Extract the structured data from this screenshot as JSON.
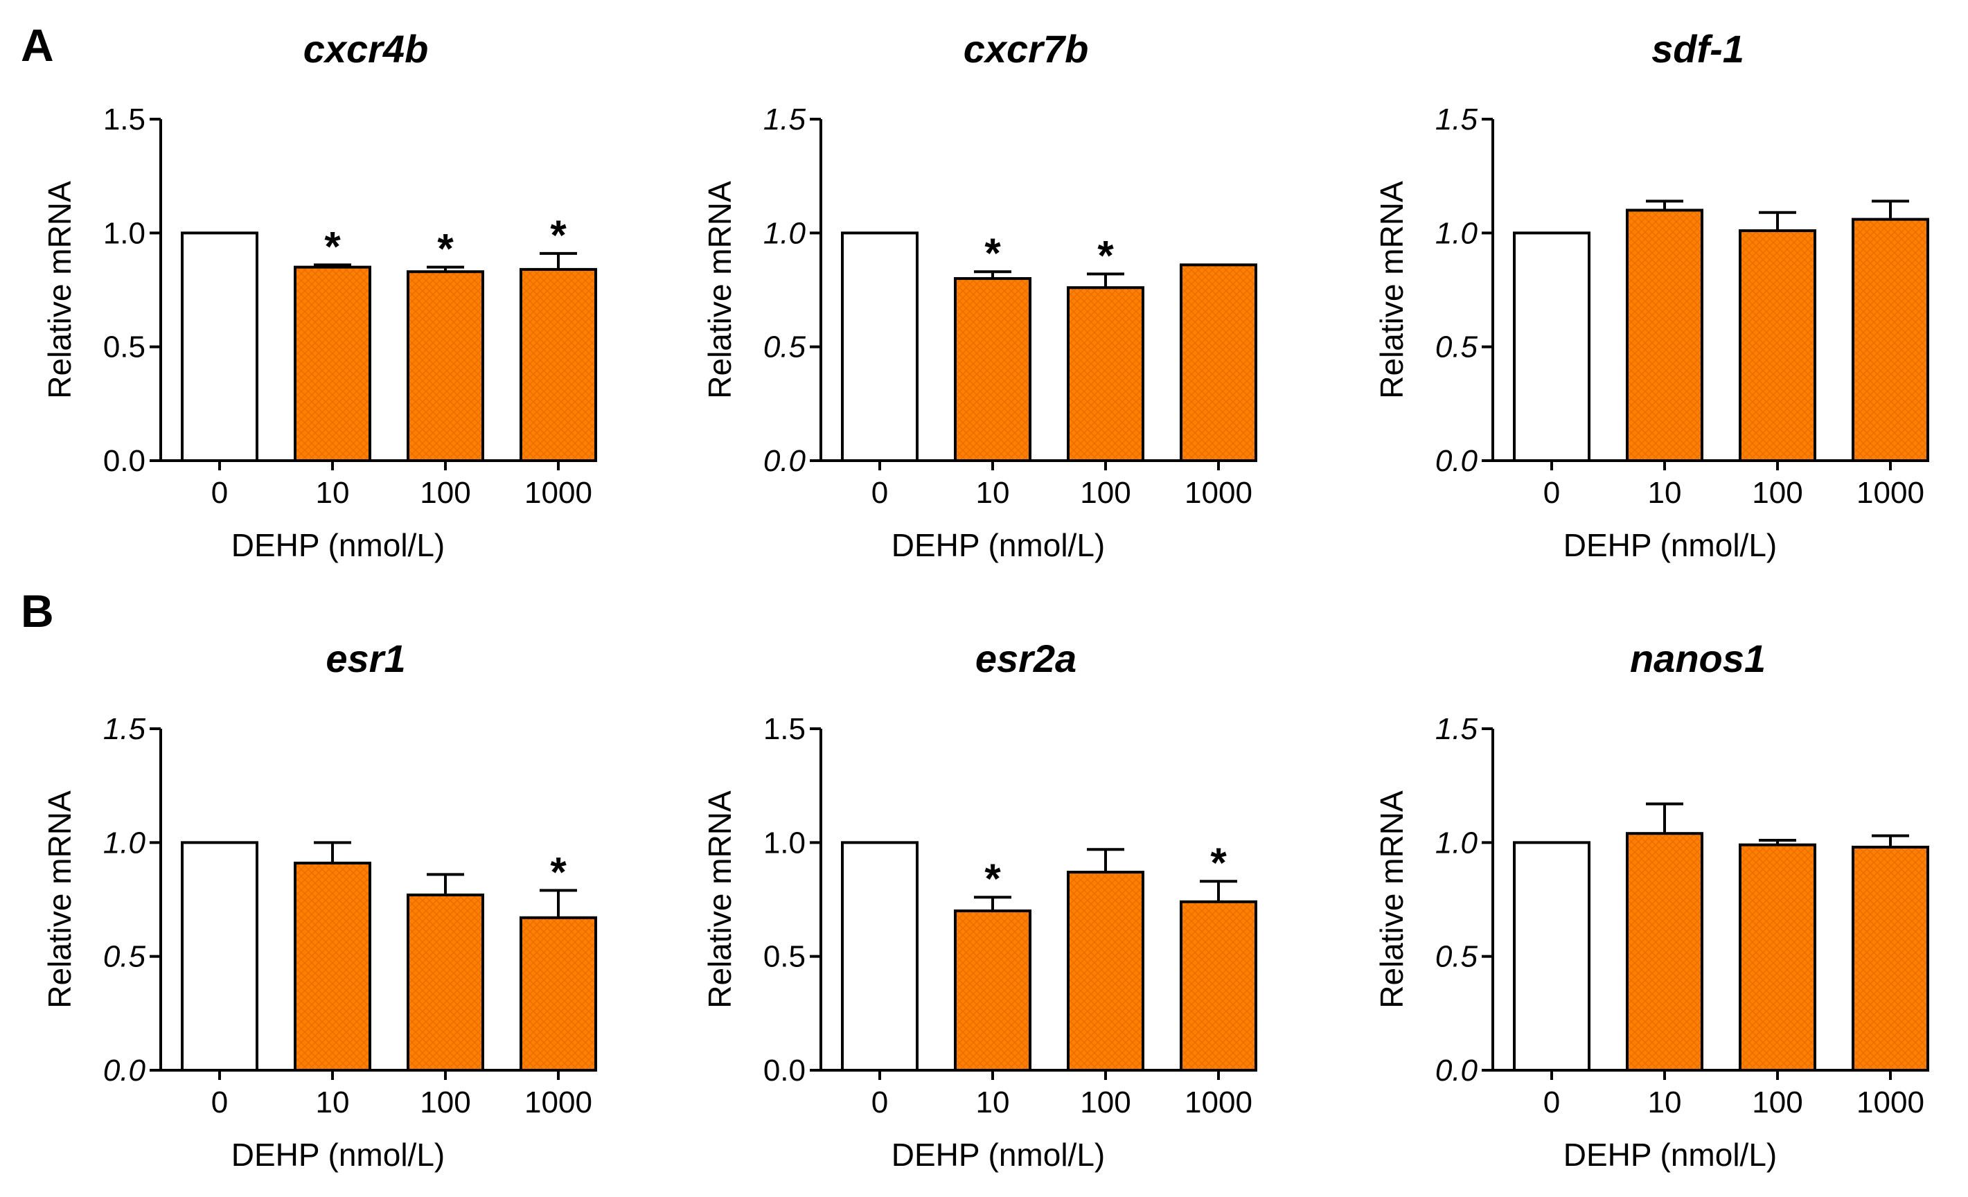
{
  "figure": {
    "panel_labels": [
      "A",
      "B"
    ],
    "colors": {
      "control": "#ffffff",
      "treated": "#ff7f00",
      "axis": "#000000"
    }
  },
  "chart_data": [
    {
      "type": "bar",
      "title": "cxcr4b",
      "xlabel": "DEHP (nmol/L)",
      "ylabel": "Relative mRNA",
      "categories": [
        "0",
        "10",
        "100",
        "1000"
      ],
      "values": [
        1.0,
        0.85,
        0.83,
        0.84
      ],
      "errors": [
        0,
        0.01,
        0.02,
        0.07
      ],
      "significant": [
        false,
        true,
        true,
        true
      ],
      "ylim": [
        0,
        1.5
      ],
      "yticks": [
        "0.0",
        "0.5",
        "1.0",
        "1.5"
      ],
      "ytick_italic": false
    },
    {
      "type": "bar",
      "title": "cxcr7b",
      "xlabel": "DEHP (nmol/L)",
      "ylabel": "Relative mRNA",
      "categories": [
        "0",
        "10",
        "100",
        "1000"
      ],
      "values": [
        1.0,
        0.8,
        0.76,
        0.86
      ],
      "errors": [
        0,
        0.03,
        0.06,
        0.0
      ],
      "significant": [
        false,
        true,
        true,
        false
      ],
      "ylim": [
        0,
        1.5
      ],
      "yticks": [
        "0.0",
        "0.5",
        "1.0",
        "1.5"
      ],
      "ytick_italic": true
    },
    {
      "type": "bar",
      "title": "sdf-1",
      "xlabel": "DEHP (nmol/L)",
      "ylabel": "Relative mRNA",
      "categories": [
        "0",
        "10",
        "100",
        "1000"
      ],
      "values": [
        1.0,
        1.1,
        1.01,
        1.06
      ],
      "errors": [
        0,
        0.04,
        0.08,
        0.08
      ],
      "significant": [
        false,
        false,
        false,
        false
      ],
      "ylim": [
        0,
        1.5
      ],
      "yticks": [
        "0.0",
        "0.5",
        "1.0",
        "1.5"
      ],
      "ytick_italic": true
    },
    {
      "type": "bar",
      "title": "esr1",
      "xlabel": "DEHP (nmol/L)",
      "ylabel": "Relative mRNA",
      "categories": [
        "0",
        "10",
        "100",
        "1000"
      ],
      "values": [
        1.0,
        0.91,
        0.77,
        0.67
      ],
      "errors": [
        0,
        0.09,
        0.09,
        0.12
      ],
      "significant": [
        false,
        false,
        false,
        true
      ],
      "ylim": [
        0,
        1.5
      ],
      "yticks": [
        "0.0",
        "0.5",
        "1.0",
        "1.5"
      ],
      "ytick_italic": true
    },
    {
      "type": "bar",
      "title": "esr2a",
      "xlabel": "DEHP (nmol/L)",
      "ylabel": "Relative mRNA",
      "categories": [
        "0",
        "10",
        "100",
        "1000"
      ],
      "values": [
        1.0,
        0.7,
        0.87,
        0.74
      ],
      "errors": [
        0,
        0.06,
        0.1,
        0.09
      ],
      "significant": [
        false,
        true,
        false,
        true
      ],
      "ylim": [
        0,
        1.5
      ],
      "yticks": [
        "0.0",
        "0.5",
        "1.0",
        "1.5"
      ],
      "ytick_italic": false
    },
    {
      "type": "bar",
      "title": "nanos1",
      "xlabel": "DEHP (nmol/L)",
      "ylabel": "Relative mRNA",
      "categories": [
        "0",
        "10",
        "100",
        "1000"
      ],
      "values": [
        1.0,
        1.04,
        0.99,
        0.98
      ],
      "errors": [
        0,
        0.13,
        0.02,
        0.05
      ],
      "significant": [
        false,
        false,
        false,
        false
      ],
      "ylim": [
        0,
        1.5
      ],
      "yticks": [
        "0.0",
        "0.5",
        "1.0",
        "1.5"
      ],
      "ytick_italic": true
    }
  ]
}
